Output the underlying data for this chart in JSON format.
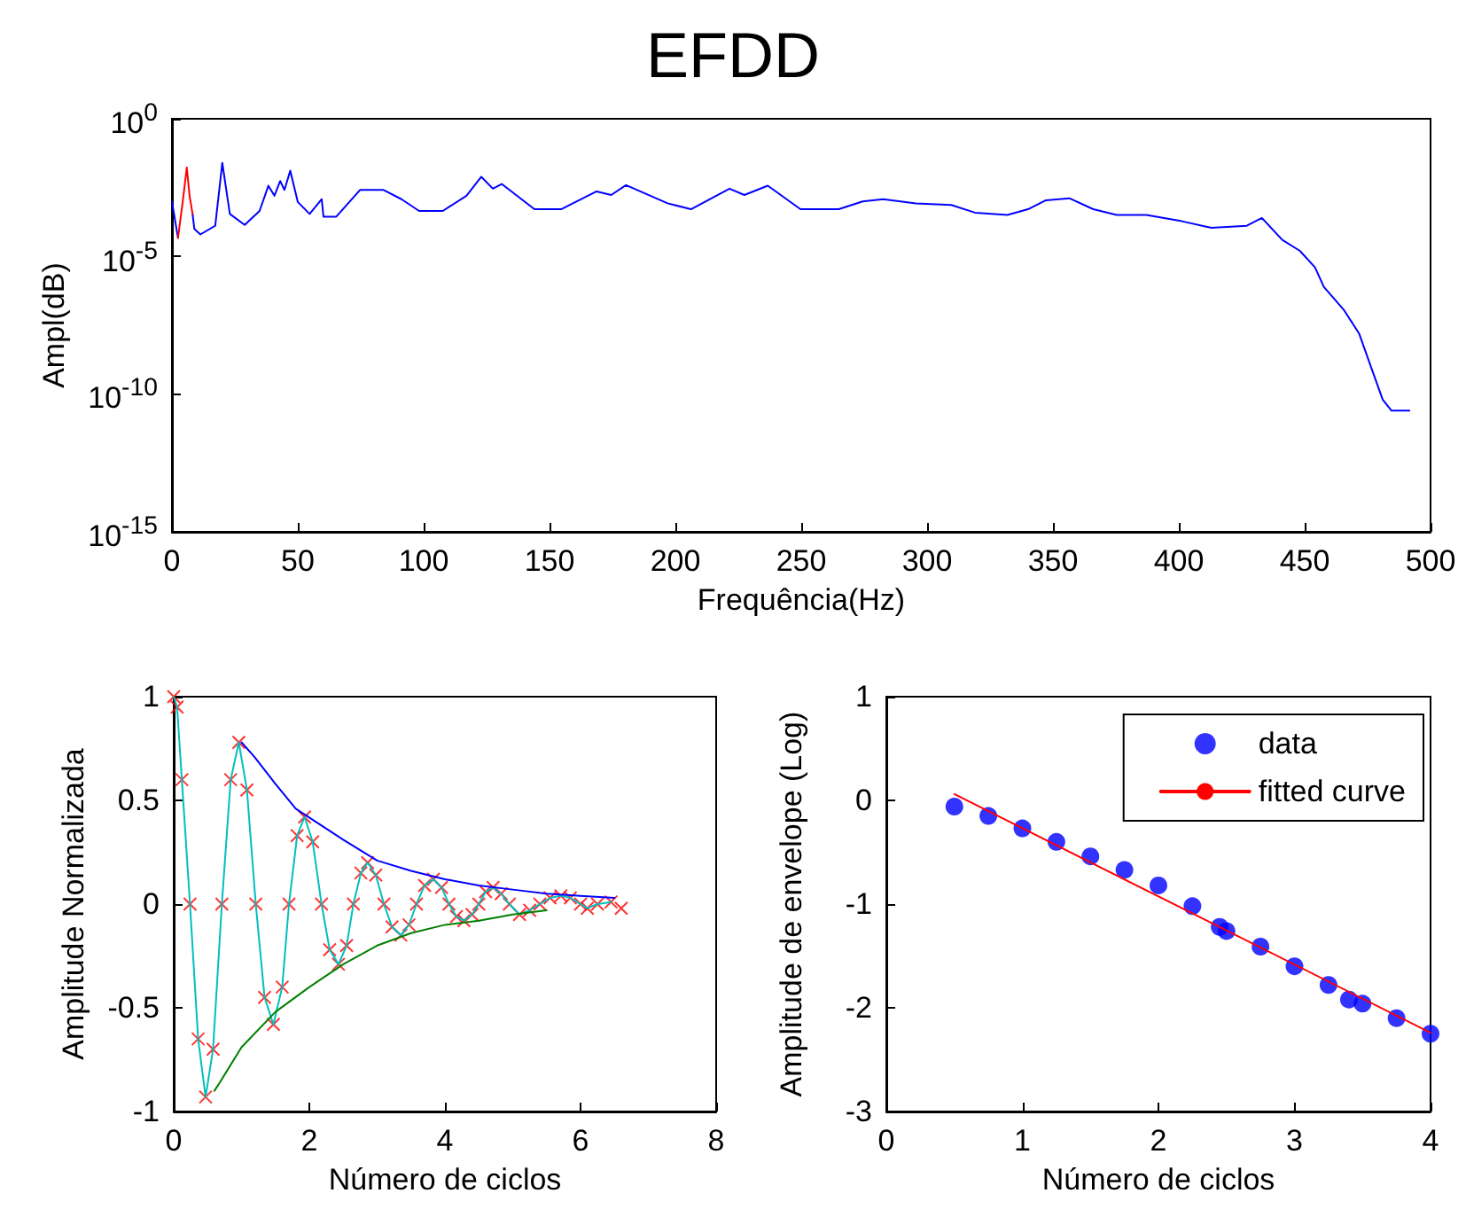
{
  "chart_data": [
    {
      "type": "line",
      "title": "EFDD",
      "xlabel": "Frequência(Hz)",
      "ylabel": "Ampl(dB)",
      "log": true,
      "xlim": [
        0,
        500
      ],
      "xticks": [
        0,
        50,
        100,
        150,
        200,
        250,
        300,
        350,
        400,
        450,
        500
      ],
      "ylim": [
        1e-15,
        1
      ],
      "yticks": [
        {
          "value": 1e-15,
          "label": "10$^{-15}$"
        },
        {
          "value": 1e-10,
          "label": "10$^{-10}$"
        },
        {
          "value": 1e-05,
          "label": "10$^{-5}$"
        },
        {
          "value": 1,
          "label": "10$^{0}$"
        }
      ],
      "series": [
        {
          "color": "#0000ff",
          "x": [
            0,
            2.4,
            5,
            8.2,
            8.9,
            11.3,
            17.2,
            20.0,
            23.0,
            28.9,
            34.8,
            38.3,
            40.7,
            43.0,
            44.7,
            47.0,
            50.0,
            54.7,
            59.5,
            60.2,
            65.3,
            74.7,
            84.1,
            91.2,
            98.2,
            107.6,
            117.0,
            122.9,
            127.5,
            131.0,
            144.0,
            154.6,
            168.7,
            174.5,
            180.4,
            196.9,
            206.2,
            221.5,
            227.4,
            236.7,
            249.7,
            264.9,
            274.4,
            282.5,
            295.5,
            309.6,
            319.0,
            331.9,
            340.1,
            347.2,
            356.5,
            366.0,
            375.3,
            387.1,
            401.2,
            412.9,
            427.0,
            433.0,
            441.1,
            448.1,
            454.1,
            457.6,
            465.7,
            471.6,
            476.3,
            481.0,
            484.5,
            491.6
          ],
          "values": [
            0.001,
            4.7e-05,
            null,
            0.00035,
            0.0001,
            6.3e-05,
            0.00013,
            0.025,
            0.00035,
            0.00014,
            0.00045,
            0.0037,
            0.0016,
            0.0055,
            0.0026,
            0.013,
            0.00095,
            0.00035,
            0.0012,
            0.00028,
            0.00028,
            0.0026,
            0.0026,
            0.0012,
            0.00045,
            0.00045,
            0.0016,
            0.0078,
            0.0029,
            0.0043,
            0.00052,
            0.00052,
            0.0023,
            0.0017,
            0.0039,
            0.00085,
            0.00052,
            0.0029,
            0.0017,
            0.0037,
            0.00052,
            0.00052,
            0.001,
            0.0012,
            0.00085,
            0.00074,
            0.00039,
            0.00032,
            0.00052,
            0.0011,
            0.0013,
            0.00052,
            0.00032,
            0.00032,
            0.00019,
            0.00011,
            0.00013,
            0.00025,
            4e-05,
            1.6e-05,
            4e-06,
            7.9e-07,
            1.1e-07,
            1.6e-08,
            1e-09,
            6.3e-11,
            2.5e-11,
            2.5e-11
          ]
        },
        {
          "color": "#ff0000",
          "x": [
            2.4,
            4.3,
            5.9,
            7.0,
            8.2
          ],
          "values": [
            4.7e-05,
            0.001,
            0.017,
            0.0016,
            0.00035
          ]
        }
      ]
    },
    {
      "type": "line",
      "xlabel": "Número de ciclos",
      "ylabel": "Amplitude Normalizada",
      "xlim": [
        0,
        8
      ],
      "xticks": [
        0,
        2,
        4,
        6,
        8
      ],
      "ylim": [
        -1,
        1
      ],
      "yticks": [
        -1,
        -0.5,
        0,
        0.5,
        1
      ],
      "series": [
        {
          "type": "scatter",
          "marker": "cross",
          "color": "#ff0000",
          "x": [
            0,
            0.05,
            0.12,
            0.24,
            0.36,
            0.47,
            0.58,
            0.71,
            0.84,
            0.96,
            1.08,
            1.21,
            1.34,
            1.47,
            1.6,
            1.7,
            1.82,
            1.93,
            2.05,
            2.18,
            2.3,
            2.43,
            2.55,
            2.65,
            2.76,
            2.86,
            2.98,
            3.1,
            3.22,
            3.35,
            3.47,
            3.58,
            3.7,
            3.83,
            3.95,
            4.06,
            4.17,
            4.28,
            4.4,
            4.5,
            4.6,
            4.71,
            4.83,
            4.95,
            5.1,
            5.25,
            5.4,
            5.55,
            5.71,
            5.85,
            6.0,
            6.1,
            6.25,
            6.45,
            6.6
          ],
          "values": [
            1.0,
            0.95,
            0.6,
            0.0,
            -0.65,
            -0.93,
            -0.7,
            0.0,
            0.6,
            0.78,
            0.55,
            0.0,
            -0.45,
            -0.58,
            -0.4,
            0.0,
            0.33,
            0.42,
            0.3,
            0.0,
            -0.22,
            -0.29,
            -0.2,
            0.0,
            0.15,
            0.2,
            0.14,
            0.0,
            -0.11,
            -0.15,
            -0.1,
            0.0,
            0.09,
            0.12,
            0.08,
            0.0,
            -0.06,
            -0.08,
            -0.05,
            0.0,
            0.06,
            0.08,
            0.05,
            0.0,
            -0.05,
            -0.03,
            0.0,
            0.03,
            0.04,
            0.03,
            0.0,
            -0.02,
            0.0,
            0.01,
            -0.02
          ]
        },
        {
          "color": "#00bfbf",
          "x": [
            0,
            0.05,
            0.12,
            0.24,
            0.36,
            0.47,
            0.58,
            0.71,
            0.84,
            0.96,
            1.08,
            1.21,
            1.34,
            1.47,
            1.6,
            1.7,
            1.82,
            1.93,
            2.05,
            2.18,
            2.3,
            2.43,
            2.55,
            2.65,
            2.76,
            2.86,
            2.98,
            3.1,
            3.22,
            3.35,
            3.47,
            3.58,
            3.7,
            3.83,
            3.95,
            4.06,
            4.17,
            4.28,
            4.4,
            4.5,
            4.6,
            4.71,
            4.83,
            4.95,
            5.1,
            5.25,
            5.4,
            5.55,
            5.71,
            5.85,
            6.0,
            6.1,
            6.25,
            6.45
          ],
          "values": [
            1.0,
            0.95,
            0.6,
            0.0,
            -0.65,
            -0.93,
            -0.7,
            0.0,
            0.6,
            0.78,
            0.55,
            0.0,
            -0.45,
            -0.58,
            -0.4,
            0.0,
            0.33,
            0.42,
            0.3,
            0.0,
            -0.22,
            -0.29,
            -0.2,
            0.0,
            0.15,
            0.2,
            0.14,
            0.0,
            -0.11,
            -0.15,
            -0.1,
            0.0,
            0.09,
            0.12,
            0.08,
            0.0,
            -0.06,
            -0.08,
            -0.05,
            0.0,
            0.06,
            0.08,
            0.05,
            0.0,
            -0.05,
            -0.03,
            0.0,
            0.03,
            0.04,
            0.03,
            0.0,
            -0.02,
            0.0,
            0.01
          ]
        },
        {
          "color": "#0000ff",
          "x": [
            1.0,
            1.19,
            1.5,
            1.8,
            2.5,
            3.0,
            3.5,
            4.0,
            4.5,
            5.0,
            5.5,
            6.0,
            6.5
          ],
          "values": [
            0.78,
            0.71,
            0.58,
            0.46,
            0.31,
            0.21,
            0.16,
            0.12,
            0.09,
            0.07,
            0.05,
            0.04,
            0.03
          ]
        },
        {
          "color": "#008000",
          "x": [
            0.6,
            0.68,
            1.0,
            1.5,
            2.0,
            2.5,
            3.0,
            3.5,
            4.0,
            4.5,
            5.0,
            5.5
          ],
          "values": [
            -0.9,
            -0.86,
            -0.69,
            -0.52,
            -0.4,
            -0.29,
            -0.2,
            -0.14,
            -0.1,
            -0.08,
            -0.05,
            -0.03
          ]
        }
      ]
    },
    {
      "type": "scatter",
      "xlabel": "Número de ciclos",
      "ylabel": "Amplitude de envelope (Log)",
      "xlim": [
        0,
        4
      ],
      "xticks": [
        0,
        1,
        2,
        3,
        4
      ],
      "ylim": [
        -3,
        1
      ],
      "yticks": [
        -3,
        -2,
        -1,
        0,
        1
      ],
      "legend": "top right",
      "series": [
        {
          "name": "data",
          "marker": "circle",
          "color": "#0000ff",
          "x": [
            0.5,
            0.75,
            1.0,
            1.25,
            1.5,
            1.75,
            2.0,
            2.25,
            2.45,
            2.5,
            2.75,
            3.0,
            3.25,
            3.4,
            3.5,
            3.75,
            4.0
          ],
          "values": [
            -0.06,
            -0.15,
            -0.27,
            -0.4,
            -0.54,
            -0.67,
            -0.82,
            -1.02,
            -1.22,
            -1.26,
            -1.41,
            -1.6,
            -1.78,
            -1.92,
            -1.96,
            -2.1,
            -2.25
          ]
        },
        {
          "name": "fitted curve",
          "type": "line",
          "color": "#ff0000",
          "x": [
            0.5,
            4.0
          ],
          "values": [
            0.06,
            -2.24
          ]
        }
      ]
    }
  ]
}
